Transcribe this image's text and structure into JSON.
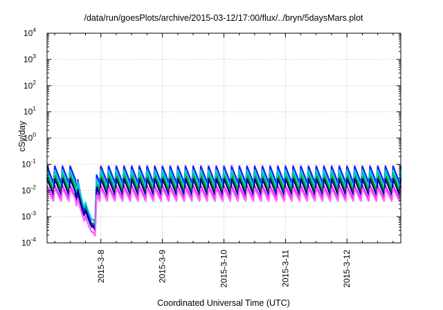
{
  "chart_data": {
    "type": "line",
    "title": "/data/run/goesPlots/archive/2015-03-12/17:00/flux/../bryn/5daysMars.plot",
    "xlabel": "Coordinated Universal Time (UTC)",
    "ylabel": "cSv/day",
    "y_scale": "log",
    "ylim": [
      0.0001,
      10000
    ],
    "y_ticks": [
      {
        "base": "10",
        "exp": "-4"
      },
      {
        "base": "10",
        "exp": "-3"
      },
      {
        "base": "10",
        "exp": "-2"
      },
      {
        "base": "10",
        "exp": "-1"
      },
      {
        "base": "10",
        "exp": "0"
      },
      {
        "base": "10",
        "exp": "1"
      },
      {
        "base": "10",
        "exp": "2"
      },
      {
        "base": "10",
        "exp": "3"
      },
      {
        "base": "10",
        "exp": "4"
      }
    ],
    "xlim": [
      "2015-03-07T03:00",
      "2015-03-12T21:00"
    ],
    "x_ticks": [
      "2015-3-8",
      "2015-3-9",
      "2015-3-10",
      "2015-3-11",
      "2015-3-12"
    ],
    "grid": true,
    "legend": "none",
    "series": [
      {
        "color": "#ff0000",
        "peak": 0.032,
        "trough": 0.007,
        "dip_low": 0.0003
      },
      {
        "color": "#009900",
        "peak": 0.04,
        "trough": 0.009,
        "dip_low": 0.00035
      },
      {
        "color": "#1a1aff",
        "peak": 0.085,
        "trough": 0.019,
        "dip_low": 0.00028
      },
      {
        "color": "#ff00ff",
        "peak": 0.015,
        "trough": 0.0045,
        "dip_low": 0.00017
      },
      {
        "color": "#00cccc",
        "peak": 0.06,
        "trough": 0.013,
        "dip_low": 0.0005
      },
      {
        "color": "#000099",
        "peak": 0.028,
        "trough": 0.0065,
        "dip_low": 0.00027
      },
      {
        "color": "#ff66ff",
        "peak": 0.012,
        "trough": 0.0038,
        "dip_low": 0.00017
      }
    ],
    "oscillation_period_hours": 3,
    "dip_start": "2015-03-07T14:00",
    "dip_end": "2015-03-07T22:20"
  }
}
